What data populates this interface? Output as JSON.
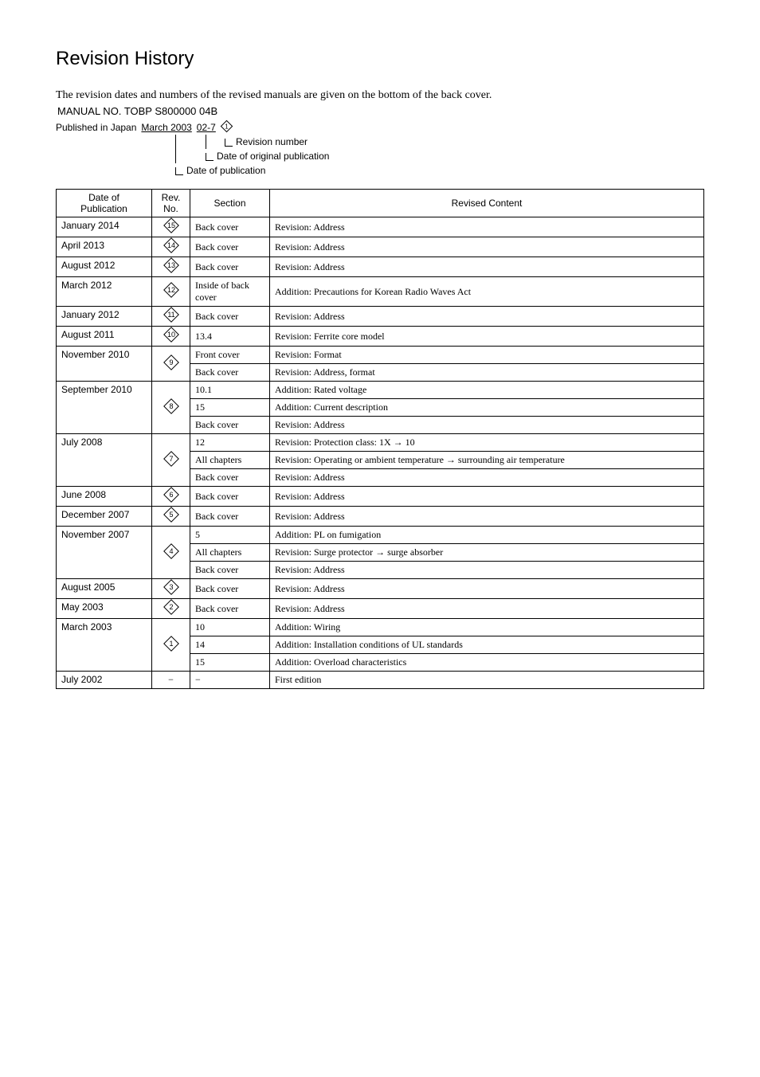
{
  "title": "Revision History",
  "intro": "The revision dates and numbers of the revised manuals are given on the bottom of the back cover.",
  "manual_no_label": "MANUAL NO.",
  "manual_no_value": "TOBP S800000 04B",
  "published_label": "Published in Japan",
  "published_date": "March 2003",
  "published_code": "02-7",
  "published_rev": "1",
  "annot_revision_number": "Revision number",
  "annot_date_orig": "Date of original publication",
  "annot_date_pub": "Date of publication",
  "headers": {
    "date": "Date of\nPublication",
    "rev": "Rev.\nNo.",
    "section": "Section",
    "content": "Revised Content"
  },
  "rows": [
    {
      "date": "January 2014",
      "rev": "15",
      "section": "Back cover",
      "content": "Revision: Address"
    },
    {
      "date": "April 2013",
      "rev": "14",
      "section": "Back cover",
      "content": "Revision: Address"
    },
    {
      "date": "August 2012",
      "rev": "13",
      "section": "Back cover",
      "content": "Revision: Address"
    },
    {
      "date": "March 2012",
      "rev": "12",
      "section": "Inside of back cover",
      "content": "Addition: Precautions for Korean Radio Waves Act"
    },
    {
      "date": "January 2012",
      "rev": "11",
      "section": "Back cover",
      "content": "Revision: Address"
    },
    {
      "date": "August 2011",
      "rev": "10",
      "section": "13.4",
      "content": "Revision: Ferrite core model"
    },
    {
      "date": "November 2010",
      "rev": "9",
      "date_rowspan": 2,
      "rev_rowspan": 2,
      "section": "Front cover",
      "content": "Revision: Format"
    },
    {
      "section": "Back cover",
      "content": "Revision: Address, format"
    },
    {
      "date": "September 2010",
      "rev": "8",
      "date_rowspan": 3,
      "rev_rowspan": 3,
      "section": "10.1",
      "content": "Addition: Rated voltage"
    },
    {
      "section": "15",
      "content": "Addition: Current description"
    },
    {
      "section": "Back cover",
      "content": "Revision: Address"
    },
    {
      "date": "July 2008",
      "rev": "7",
      "date_rowspan": 3,
      "rev_rowspan": 3,
      "section": "12",
      "content": "Revision: Protection class: 1X → 10"
    },
    {
      "section": "All chapters",
      "content": "Revision: Operating or ambient temperature → surrounding air temperature"
    },
    {
      "section": "Back cover",
      "content": "Revision: Address"
    },
    {
      "date": "June 2008",
      "rev": "6",
      "section": "Back cover",
      "content": "Revision: Address"
    },
    {
      "date": "December 2007",
      "rev": "5",
      "section": "Back cover",
      "content": "Revision: Address"
    },
    {
      "date": "November 2007",
      "rev": "4",
      "date_rowspan": 3,
      "rev_rowspan": 3,
      "section": "5",
      "content": "Addition: PL on fumigation"
    },
    {
      "section": "All chapters",
      "content": "Revision: Surge protector → surge absorber"
    },
    {
      "section": "Back cover",
      "content": "Revision: Address"
    },
    {
      "date": "August 2005",
      "rev": "3",
      "section": "Back cover",
      "content": "Revision: Address"
    },
    {
      "date": "May 2003",
      "rev": "2",
      "section": "Back cover",
      "content": "Revision: Address"
    },
    {
      "date": "March 2003",
      "rev": "1",
      "date_rowspan": 3,
      "rev_rowspan": 3,
      "section": "10",
      "content": "Addition: Wiring"
    },
    {
      "section": "14",
      "content": "Addition: Installation conditions of UL standards"
    },
    {
      "section": "15",
      "content": "Addition: Overload characteristics"
    },
    {
      "date": "July 2002",
      "rev_plain": "−",
      "section": "−",
      "content": "First edition"
    }
  ]
}
